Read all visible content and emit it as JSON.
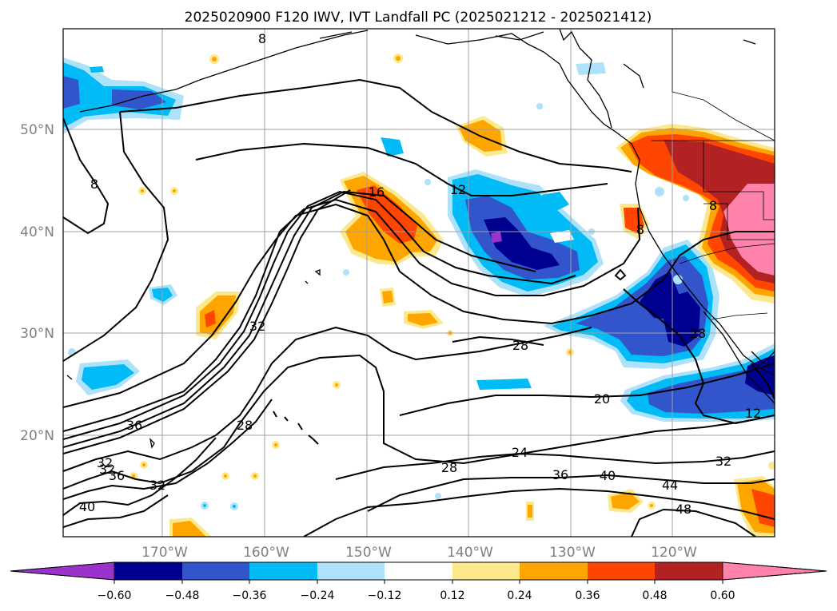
{
  "title": "2025020900 F120 IWV, IVT Landfall PC (2025021212 - 2025021412)",
  "axes": {
    "lat_labels": [
      "50°N",
      "40°N",
      "30°N",
      "20°N"
    ],
    "lon_labels": [
      "170°W",
      "160°W",
      "150°W",
      "140°W",
      "130°W",
      "120°W"
    ]
  },
  "colorbar": {
    "colors": [
      "#9933cc",
      "#000090",
      "#3355cc",
      "#00bbf5",
      "#aee2fa",
      "#ffffff",
      "#fde98d",
      "#ffa500",
      "#ff4500",
      "#b22222",
      "#ff82ab"
    ],
    "tick_labels": [
      "−0.60",
      "−0.48",
      "−0.36",
      "−0.24",
      "−0.12",
      "0.12",
      "0.24",
      "0.36",
      "0.48",
      "0.60"
    ]
  },
  "contour_labels": [
    "8",
    "8",
    "16",
    "12",
    "8",
    "8",
    "32",
    "28",
    "28",
    "28",
    "20",
    "24",
    "28",
    "36",
    "36",
    "32",
    "32",
    "40",
    "44",
    "48",
    "32",
    "36",
    "40",
    "32",
    "12"
  ]
}
